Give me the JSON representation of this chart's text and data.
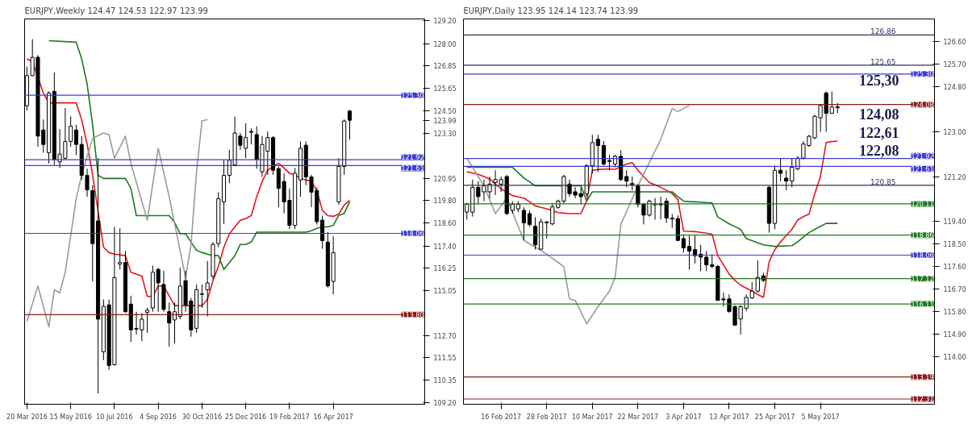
{
  "chart_data": [
    {
      "type": "candlestick",
      "title": "EURJPY,Weekly  124.47 124.53 122.97 123.99",
      "x": [
        "2016-03-20",
        "2016-03-27",
        "2016-04-03",
        "2016-04-10",
        "2016-04-17",
        "2016-04-24",
        "2016-05-01",
        "2016-05-08",
        "2016-05-15",
        "2016-05-22",
        "2016-05-29",
        "2016-06-05",
        "2016-06-12",
        "2016-06-19",
        "2016-06-26",
        "2016-07-03",
        "2016-07-10",
        "2016-07-17",
        "2016-07-24",
        "2016-07-31",
        "2016-08-07",
        "2016-08-14",
        "2016-08-21",
        "2016-08-28",
        "2016-09-04",
        "2016-09-11",
        "2016-09-18",
        "2016-09-25",
        "2016-10-02",
        "2016-10-09",
        "2016-10-16",
        "2016-10-23",
        "2016-10-30",
        "2016-11-06",
        "2016-11-13",
        "2016-11-20",
        "2016-11-27",
        "2016-12-04",
        "2016-12-11",
        "2016-12-18",
        "2016-12-25",
        "2017-01-01",
        "2017-01-08",
        "2017-01-15",
        "2017-01-22",
        "2017-01-29",
        "2017-02-05",
        "2017-02-12",
        "2017-02-19",
        "2017-02-26",
        "2017-03-05",
        "2017-03-12",
        "2017-03-19",
        "2017-03-26",
        "2017-04-02",
        "2017-04-09",
        "2017-04-16",
        "2017-04-23",
        "2017-04-30",
        "2017-05-07"
      ],
      "ohlc": [
        [
          124.75,
          126.8,
          124.5,
          126.33
        ],
        [
          126.33,
          128.24,
          126.3,
          127.29
        ],
        [
          127.29,
          127.4,
          122.6,
          123.16
        ],
        [
          123.48,
          124.03,
          122.29,
          122.72
        ],
        [
          122.29,
          125.5,
          121.73,
          125.42
        ],
        [
          125.5,
          126.49,
          121.65,
          121.93
        ],
        [
          121.81,
          123.52,
          121.49,
          122.21
        ],
        [
          122.0,
          124.63,
          121.93,
          122.88
        ],
        [
          122.88,
          124.19,
          122.6,
          123.67
        ],
        [
          123.48,
          123.75,
          122.17,
          122.72
        ],
        [
          122.72,
          123.16,
          120.86,
          121.1
        ],
        [
          121.1,
          121.45,
          119.98,
          120.34
        ],
        [
          120.3,
          120.58,
          115.54,
          117.52
        ],
        [
          118.71,
          122.0,
          109.67,
          113.56
        ],
        [
          111.85,
          114.59,
          111.41,
          114.23
        ],
        [
          114.31,
          114.59,
          110.9,
          111.13
        ],
        [
          111.17,
          118.4,
          111.13,
          115.74
        ],
        [
          116.45,
          118.32,
          116.17,
          116.53
        ],
        [
          116.53,
          117.13,
          113.9,
          113.95
        ],
        [
          114.35,
          114.79,
          112.37,
          113.0
        ],
        [
          113.08,
          113.95,
          112.76,
          113.04
        ],
        [
          113.0,
          113.87,
          112.4,
          113.56
        ],
        [
          113.91,
          114.15,
          112.84,
          114.03
        ],
        [
          114.15,
          116.37,
          113.95,
          116.02
        ],
        [
          116.17,
          116.25,
          113.95,
          115.46
        ],
        [
          115.38,
          116.1,
          113.95,
          114.07
        ],
        [
          113.95,
          114.43,
          112.13,
          113.36
        ],
        [
          113.52,
          114.43,
          112.29,
          113.95
        ],
        [
          113.71,
          116.25,
          113.56,
          115.3
        ],
        [
          115.58,
          116.1,
          113.95,
          114.31
        ],
        [
          114.51,
          114.67,
          112.64,
          113.0
        ],
        [
          113.08,
          115.38,
          112.84,
          115.1
        ],
        [
          114.86,
          115.38,
          114.15,
          114.9
        ],
        [
          115.1,
          116.61,
          113.71,
          115.46
        ],
        [
          115.82,
          117.6,
          115.66,
          117.48
        ],
        [
          117.52,
          120.22,
          117.33,
          119.87
        ],
        [
          119.71,
          121.93,
          118.56,
          121.1
        ],
        [
          121.1,
          122.44,
          120.7,
          121.89
        ],
        [
          121.65,
          124.19,
          121.57,
          123.32
        ],
        [
          123.16,
          123.32,
          122.44,
          122.68
        ],
        [
          122.52,
          123.83,
          122.0,
          123.08
        ],
        [
          123.4,
          123.56,
          122.72,
          123.36
        ],
        [
          123.24,
          123.67,
          121.45,
          121.93
        ],
        [
          121.29,
          123.16,
          121.02,
          122.72
        ],
        [
          122.37,
          123.4,
          121.13,
          123.08
        ],
        [
          123.08,
          123.16,
          121.13,
          121.37
        ],
        [
          121.45,
          121.57,
          119.43,
          120.42
        ],
        [
          120.78,
          121.21,
          119.11,
          119.71
        ],
        [
          119.79,
          120.42,
          118.28,
          118.48
        ],
        [
          118.48,
          121.49,
          118.28,
          121.21
        ],
        [
          120.86,
          122.88,
          119.98,
          122.52
        ],
        [
          122.68,
          122.88,
          120.58,
          121.02
        ],
        [
          121.02,
          121.13,
          119.43,
          120.22
        ],
        [
          120.3,
          120.46,
          118.52,
          118.67
        ],
        [
          118.75,
          118.99,
          117.25,
          117.68
        ],
        [
          117.6,
          118.12,
          115.22,
          115.3
        ],
        [
          115.54,
          117.92,
          114.86,
          117.05
        ],
        [
          119.71,
          122.0,
          119.55,
          121.57
        ],
        [
          121.57,
          124.03,
          121.13,
          123.95
        ],
        [
          124.47,
          124.53,
          122.97,
          123.99
        ]
      ],
      "series": [
        {
          "type": "line",
          "color": "#e8141b",
          "x": [
            "2016-03-20",
            "2016-03-27",
            "2016-04-10",
            "2016-04-17",
            "2016-05-22",
            "2016-05-29",
            "2016-06-05",
            "2016-06-12",
            "2016-06-26",
            "2016-07-03",
            "2016-07-10",
            "2016-07-24",
            "2016-07-31",
            "2016-08-14",
            "2016-08-21",
            "2016-08-28",
            "2016-09-04",
            "2016-09-11",
            "2016-09-25",
            "2016-10-30",
            "2016-11-06",
            "2016-11-13",
            "2016-11-20",
            "2016-11-27",
            "2016-12-04",
            "2016-12-11",
            "2016-12-18",
            "2016-12-25",
            "2017-01-01",
            "2017-01-08",
            "2017-01-15",
            "2017-01-22",
            "2017-01-29",
            "2017-02-05",
            "2017-02-12",
            "2017-02-19",
            "2017-02-26",
            "2017-03-05",
            "2017-03-12",
            "2017-03-19",
            "2017-03-26",
            "2017-04-02",
            "2017-04-09",
            "2017-04-16",
            "2017-04-23",
            "2017-04-30",
            "2017-05-07"
          ],
          "values": [
            127.21,
            127.07,
            125.42,
            124.9,
            124.9,
            124.03,
            122.72,
            121.13,
            117.33,
            117.05,
            116.97,
            116.89,
            116.02,
            115.82,
            114.75,
            114.75,
            115.3,
            115.3,
            114.27,
            114.27,
            114.59,
            115.58,
            116.33,
            117.33,
            118.04,
            118.4,
            118.75,
            118.83,
            118.99,
            119.98,
            120.78,
            121.37,
            121.57,
            121.73,
            121.49,
            121.21,
            121.13,
            120.94,
            120.86,
            120.78,
            120.3,
            119.27,
            118.99,
            118.95,
            119.07,
            119.55,
            119.79
          ]
        },
        {
          "type": "line",
          "color": "#1a7a1a",
          "x": [
            "2016-04-17",
            "2016-05-22",
            "2016-05-29",
            "2016-06-05",
            "2016-06-12",
            "2016-06-19",
            "2016-06-26",
            "2016-07-24",
            "2016-07-31",
            "2016-08-07",
            "2016-09-18",
            "2016-09-25",
            "2016-10-02",
            "2016-10-09",
            "2016-10-16",
            "2016-10-23",
            "2016-10-30",
            "2016-11-06",
            "2016-11-13",
            "2016-11-20",
            "2016-11-27",
            "2016-12-04",
            "2016-12-11",
            "2016-12-18",
            "2016-12-25",
            "2017-01-01",
            "2017-01-08",
            "2017-03-12",
            "2017-03-19",
            "2017-03-26",
            "2017-04-02",
            "2017-04-09",
            "2017-04-16",
            "2017-04-23",
            "2017-04-30",
            "2017-05-07"
          ],
          "values": [
            128.16,
            128.08,
            127.21,
            125.9,
            123.75,
            121.1,
            120.94,
            120.94,
            120.42,
            118.99,
            118.99,
            118.63,
            118.04,
            118.04,
            117.6,
            117.17,
            117.05,
            116.97,
            116.89,
            116.89,
            116.17,
            116.53,
            116.89,
            117.48,
            117.48,
            117.6,
            118.12,
            118.12,
            118.2,
            118.32,
            118.4,
            118.4,
            118.48,
            119.0,
            119.11,
            119.71
          ]
        },
        {
          "type": "line",
          "color": "#9a9a9a",
          "x": [
            "2016-03-20",
            "2016-04-03",
            "2016-04-17",
            "2016-04-24",
            "2016-05-01",
            "2016-05-08",
            "2016-05-22",
            "2016-05-29",
            "2016-06-12",
            "2016-06-26",
            "2016-07-03",
            "2016-07-10",
            "2016-07-24",
            "2016-07-31",
            "2016-08-21",
            "2016-09-04",
            "2016-09-18",
            "2016-09-25",
            "2016-10-09",
            "2016-10-16",
            "2016-10-23",
            "2016-10-30",
            "2016-11-06"
          ],
          "values": [
            113.44,
            115.3,
            113.16,
            115.1,
            114.94,
            116.02,
            119.87,
            121.13,
            123.04,
            123.32,
            123.24,
            122.0,
            123.16,
            121.73,
            118.75,
            122.52,
            119.98,
            118.56,
            115.74,
            117.48,
            121.29,
            123.95,
            124.03
          ]
        }
      ],
      "xlim": [
        "2016-03-17",
        "2017-08-11"
      ],
      "ylim": [
        109.1,
        129.3
      ],
      "yticks": [
        {
          "value": 109.2,
          "label": "109.20"
        },
        {
          "value": 110.35,
          "label": "110.35"
        },
        {
          "value": 111.55,
          "label": "111.55"
        },
        {
          "value": 112.7,
          "label": "112.70"
        },
        {
          "value": 115.05,
          "label": "115.05"
        },
        {
          "value": 116.25,
          "label": "116.25"
        },
        {
          "value": 117.4,
          "label": "117.40"
        },
        {
          "value": 118.6,
          "label": "118.60"
        },
        {
          "value": 119.8,
          "label": "119.80"
        },
        {
          "value": 120.95,
          "label": "120.95"
        },
        {
          "value": 123.3,
          "label": "123.30"
        },
        {
          "value": 123.99,
          "label": "123.99"
        },
        {
          "value": 124.5,
          "label": "124.50"
        },
        {
          "value": 125.65,
          "label": "125.65"
        },
        {
          "value": 126.85,
          "label": "126.85"
        },
        {
          "value": 128.0,
          "label": "128.00"
        },
        {
          "value": 129.2,
          "label": "129.20"
        }
      ],
      "xticks": [
        {
          "value": "2016-03-20",
          "label": "20 Mar 2016"
        },
        {
          "value": "2016-05-15",
          "label": "15 May 2016"
        },
        {
          "value": "2016-07-10",
          "label": "10 Jul 2016"
        },
        {
          "value": "2016-09-04",
          "label": "4 Sep 2016"
        },
        {
          "value": "2016-10-30",
          "label": "30 Oct 2016"
        },
        {
          "value": "2016-12-25",
          "label": "25 Dec 2016"
        },
        {
          "value": "2017-02-19",
          "label": "19 Feb 2017"
        },
        {
          "value": "2017-04-16",
          "label": "16 Apr 2017"
        }
      ],
      "ref_lines": [
        {
          "axis": "y",
          "value": 125.3,
          "label": "125.30",
          "color": "#3c3cd2"
        },
        {
          "axis": "y",
          "value": 121.92,
          "label": "121.92",
          "color": "#3c3cd2"
        },
        {
          "axis": "y",
          "value": 121.61,
          "label": "121.61",
          "color": "#3c3cd2"
        },
        {
          "axis": "y",
          "value": 118.06,
          "label": "118.06",
          "color": "#3c3cd2"
        },
        {
          "axis": "y",
          "value": 113.8,
          "label": "113.80",
          "color": "#8b1c1c"
        }
      ]
    },
    {
      "type": "candlestick",
      "title": "EURJPY,Daily  123.95 124.14 123.74 123.99",
      "categories": [
        null,
        null,
        null,
        null,
        null,
        null,
        "16 Feb 2017",
        null,
        null,
        null,
        null,
        null,
        null,
        null,
        "28 Feb 2017",
        null,
        null,
        null,
        null,
        null,
        null,
        null,
        "10 Mar 2017",
        null,
        null,
        null,
        null,
        null,
        null,
        null,
        "22 Mar 2017",
        null,
        null,
        null,
        null,
        null,
        null,
        null,
        "3 Apr 2017",
        null,
        null,
        null,
        null,
        null,
        null,
        null,
        "13 Apr 2017",
        null,
        null,
        null,
        null,
        null,
        null,
        null,
        "25 Apr 2017",
        null,
        null,
        null,
        null,
        null,
        null,
        null,
        "5 May 2017",
        null,
        null,
        null
      ],
      "ohlc": [
        [
          119.78,
          120.15,
          119.48,
          120.09
        ],
        [
          119.78,
          121.08,
          119.6,
          120.77
        ],
        [
          120.77,
          121.02,
          120.09,
          120.4
        ],
        [
          120.59,
          121.08,
          120.22,
          120.83
        ],
        [
          120.59,
          121.2,
          120.34,
          120.9
        ],
        [
          120.96,
          121.45,
          120.46,
          121.08
        ],
        [
          120.9,
          121.2,
          120.59,
          121.08
        ],
        [
          121.2,
          121.27,
          119.66,
          119.72
        ],
        [
          119.85,
          120.22,
          119.72,
          120.09
        ],
        [
          119.91,
          120.22,
          119.78,
          120.09
        ],
        [
          119.85,
          119.97,
          118.65,
          119.35
        ],
        [
          119.72,
          119.85,
          119.2,
          119.28
        ],
        [
          119.21,
          119.58,
          118.28,
          118.47
        ],
        [
          118.3,
          119.52,
          118.28,
          119.39
        ],
        [
          119.35,
          119.42,
          118.72,
          119.39
        ],
        [
          119.31,
          120.15,
          119.25,
          119.99
        ],
        [
          119.97,
          120.28,
          119.91,
          120.22
        ],
        [
          120.22,
          121.27,
          120.09,
          121.2
        ],
        [
          120.9,
          121.08,
          120.4,
          120.52
        ],
        [
          120.59,
          120.77,
          120.34,
          120.46
        ],
        [
          120.52,
          120.77,
          120.09,
          120.4
        ],
        [
          120.52,
          121.7,
          120.4,
          121.64
        ],
        [
          121.64,
          122.87,
          121.33,
          122.56
        ],
        [
          122.69,
          122.87,
          121.39,
          122.44
        ],
        [
          122.44,
          122.62,
          121.64,
          121.7
        ],
        [
          121.84,
          122.07,
          121.45,
          121.8
        ],
        [
          121.7,
          122.07,
          121.57,
          122.01
        ],
        [
          122.01,
          122.25,
          121.02,
          121.08
        ],
        [
          121.2,
          121.45,
          120.77,
          121.02
        ],
        [
          120.92,
          121.2,
          120.65,
          120.88
        ],
        [
          120.83,
          120.9,
          119.97,
          120.09
        ],
        [
          120.09,
          120.15,
          119.29,
          119.66
        ],
        [
          119.66,
          120.28,
          119.6,
          120.22
        ],
        [
          120.07,
          120.34,
          119.48,
          120.11
        ],
        [
          120.11,
          120.4,
          119.48,
          120.07
        ],
        [
          120.22,
          120.34,
          119.35,
          119.54
        ],
        [
          119.5,
          119.7,
          119.15,
          119.54
        ],
        [
          119.52,
          119.65,
          118.62,
          118.65
        ],
        [
          118.72,
          118.9,
          118.16,
          118.35
        ],
        [
          118.41,
          118.84,
          117.48,
          118.22
        ],
        [
          118.28,
          118.84,
          117.73,
          118.04
        ],
        [
          118.1,
          118.47,
          117.42,
          117.98
        ],
        [
          117.98,
          118.22,
          117.42,
          117.67
        ],
        [
          117.67,
          118.1,
          117.54,
          117.61
        ],
        [
          117.61,
          117.67,
          116.25,
          116.25
        ],
        [
          116.31,
          116.56,
          116.0,
          116.27
        ],
        [
          116.31,
          116.49,
          115.75,
          115.81
        ],
        [
          116.0,
          116.06,
          115.26,
          115.26
        ],
        [
          115.51,
          116.06,
          114.89,
          116.0
        ],
        [
          115.94,
          116.49,
          115.81,
          116.37
        ],
        [
          116.35,
          116.99,
          116.31,
          116.62
        ],
        [
          116.62,
          117.85,
          116.56,
          117.17
        ],
        [
          117.23,
          117.36,
          116.99,
          117.05
        ],
        [
          120.77,
          120.83,
          118.96,
          119.33
        ],
        [
          119.33,
          121.64,
          119.09,
          121.45
        ],
        [
          121.45,
          121.94,
          121.02,
          121.33
        ],
        [
          121.14,
          121.45,
          120.65,
          121.02
        ],
        [
          121.02,
          121.94,
          120.77,
          121.57
        ],
        [
          121.51,
          122.01,
          121.45,
          121.94
        ],
        [
          121.94,
          122.62,
          121.88,
          122.5
        ],
        [
          122.44,
          122.87,
          122.38,
          122.81
        ],
        [
          122.75,
          123.67,
          122.69,
          123.61
        ],
        [
          123.55,
          124.1,
          122.99,
          124.04
        ],
        [
          124.54,
          124.6,
          122.99,
          123.73
        ],
        [
          123.73,
          124.6,
          123.73,
          123.98
        ],
        [
          123.95,
          124.14,
          123.74,
          123.99
        ]
      ],
      "series": [
        {
          "type": "line",
          "color": "#e8141b",
          "values": [
            121.39,
            121.34,
            121.29,
            121.2,
            121.1,
            120.9,
            120.71,
            120.58,
            120.44,
            120.39,
            120.34,
            120.19,
            120.03,
            119.97,
            119.91,
            119.84,
            119.76,
            119.74,
            119.72,
            119.72,
            119.72,
            120.22,
            121.45,
            121.48,
            121.5,
            121.5,
            121.49,
            121.6,
            121.7,
            121.76,
            121.45,
            121.2,
            120.96,
            120.87,
            120.77,
            120.65,
            120.52,
            120.28,
            119.02,
            119.01,
            119.0,
            118.97,
            118.94,
            118.9,
            118.04,
            117.67,
            117.3,
            117.05,
            116.86,
            116.74,
            116.62,
            116.49,
            116.37,
            117.79,
            118.28,
            118.59,
            118.84,
            119.09,
            119.46,
            119.6,
            119.7,
            120.52,
            121.2,
            122.56,
            122.6,
            122.62
          ]
        },
        {
          "type": "line",
          "color": "#1a7a1a",
          "values": [
            121.57,
            121.57,
            121.57,
            121.57,
            121.57,
            121.57,
            121.57,
            121.57,
            121.57,
            121.36,
            121.14,
            120.99,
            120.83,
            120.83,
            120.83,
            120.83,
            120.83,
            120.83,
            120.83,
            120.83,
            120.83,
            120.22,
            120.59,
            120.59,
            120.59,
            120.59,
            120.59,
            120.59,
            120.59,
            120.59,
            120.59,
            120.59,
            120.59,
            120.59,
            120.59,
            120.59,
            120.59,
            120.4,
            120.22,
            120.2,
            120.19,
            120.18,
            120.16,
            120.15,
            119.58,
            119.45,
            119.31,
            119.2,
            119.09,
            118.72,
            118.64,
            118.55,
            118.47,
            118.44,
            118.41,
            118.42,
            118.43,
            118.44,
            118.59,
            118.78,
            118.96,
            119.09,
            119.21,
            119.33,
            119.33,
            119.33
          ]
        },
        {
          "type": "line",
          "color": "#9a9a9a",
          "values": [
            121.94,
            121.57,
            121.2,
            120.83,
            120.28,
            119.72,
            120.03,
            120.34,
            119.78,
            119.21,
            118.65,
            118.51,
            118.38,
            118.24,
            118.1,
            117.93,
            117.77,
            117.6,
            116.31,
            116.25,
            115.79,
            115.32,
            115.66,
            116.0,
            116.31,
            116.62,
            117.17,
            119.29,
            119.8,
            120.32,
            120.83,
            121.3,
            121.76,
            122.23,
            122.69,
            123.31,
            123.92,
            123.8,
            123.92,
            124.04,
            null,
            null,
            null,
            null,
            null,
            null,
            null,
            null,
            null,
            null,
            null,
            null,
            null,
            null,
            null,
            null,
            null,
            null,
            null,
            null,
            null,
            null,
            null,
            null,
            null,
            null
          ]
        }
      ],
      "ylim": [
        112.1,
        127.5
      ],
      "yticks": [
        {
          "value": 114.0,
          "label": "114.00"
        },
        {
          "value": 114.9,
          "label": "114.90"
        },
        {
          "value": 115.8,
          "label": "115.80"
        },
        {
          "value": 116.7,
          "label": "116.70"
        },
        {
          "value": 117.6,
          "label": "117.60"
        },
        {
          "value": 118.5,
          "label": "118.50"
        },
        {
          "value": 119.4,
          "label": "119.40"
        },
        {
          "value": 121.2,
          "label": "121.20"
        },
        {
          "value": 123.0,
          "label": "123.00"
        },
        {
          "value": 124.8,
          "label": "124.80"
        },
        {
          "value": 125.7,
          "label": "125.70"
        },
        {
          "value": 126.6,
          "label": "126.60"
        }
      ],
      "ref_lines": [
        {
          "axis": "y",
          "value": 126.86,
          "color": "#333355"
        },
        {
          "axis": "y",
          "value": 125.65,
          "color": "#333355"
        },
        {
          "axis": "y",
          "value": 125.3,
          "label": "125.30",
          "color": "#3c3cd2"
        },
        {
          "axis": "y",
          "value": 124.08,
          "label": "124.08",
          "color": "#8b1c1c"
        },
        {
          "axis": "y",
          "value": 121.92,
          "label": "121.92",
          "color": "#3c3cd2"
        },
        {
          "axis": "y",
          "value": 121.61,
          "label": "121.61",
          "color": "#3c3cd2"
        },
        {
          "axis": "y",
          "value": 120.85,
          "color": "#333355"
        },
        {
          "axis": "y",
          "value": 120.11,
          "label": "120.11",
          "color": "#1f7a1f"
        },
        {
          "axis": "y",
          "value": 118.86,
          "label": "118.86",
          "color": "#1f7a1f"
        },
        {
          "axis": "y",
          "value": 118.06,
          "label": "118.06",
          "color": "#3c3cd2"
        },
        {
          "axis": "y",
          "value": 117.12,
          "label": "117.12",
          "color": "#1f7a1f"
        },
        {
          "axis": "y",
          "value": 116.11,
          "label": "116.11",
          "color": "#1f7a1f"
        },
        {
          "axis": "y",
          "value": 113.19,
          "label": "113.19",
          "color": "#8b1c1c"
        },
        {
          "axis": "y",
          "value": 112.31,
          "label": "112.31",
          "color": "#8b1c1c"
        }
      ],
      "annotations": [
        {
          "text": "126.86",
          "y": 126.86
        },
        {
          "text": "125.65",
          "y": 125.65
        },
        {
          "text": "120.85",
          "y": 120.85
        },
        "125,30",
        "124,08",
        "122,61",
        "122,08"
      ]
    }
  ]
}
